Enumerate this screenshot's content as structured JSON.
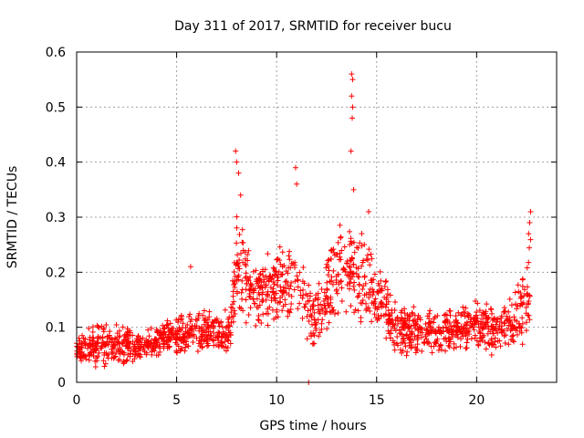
{
  "chart_data": {
    "type": "scatter",
    "title": "Day 311 of 2017, SRMTID for receiver bucu",
    "xlabel": "GPS time / hours",
    "ylabel": "SRMTID / TECUs",
    "xlim": [
      0,
      24
    ],
    "ylim": [
      0,
      0.6
    ],
    "xticks": [
      "0",
      "5",
      "10",
      "15",
      "20"
    ],
    "yticks": [
      "0",
      "0.1",
      "0.2",
      "0.3",
      "0.4",
      "0.5",
      "0.6"
    ],
    "xtick_values": [
      0,
      5,
      10,
      15,
      20
    ],
    "ytick_values": [
      0,
      0.1,
      0.2,
      0.3,
      0.4,
      0.5,
      0.6
    ],
    "grid": true,
    "marker": "+",
    "color": "#ff0000",
    "envelope": [
      {
        "x": 0.0,
        "lo": 0.03,
        "hi": 0.09
      },
      {
        "x": 1.0,
        "lo": 0.02,
        "hi": 0.11
      },
      {
        "x": 2.0,
        "lo": 0.03,
        "hi": 0.11
      },
      {
        "x": 3.0,
        "lo": 0.03,
        "hi": 0.1
      },
      {
        "x": 4.0,
        "lo": 0.04,
        "hi": 0.11
      },
      {
        "x": 5.0,
        "lo": 0.05,
        "hi": 0.12
      },
      {
        "x": 6.0,
        "lo": 0.05,
        "hi": 0.14
      },
      {
        "x": 7.0,
        "lo": 0.05,
        "hi": 0.13
      },
      {
        "x": 7.7,
        "lo": 0.05,
        "hi": 0.14
      },
      {
        "x": 8.0,
        "lo": 0.13,
        "hi": 0.32
      },
      {
        "x": 8.5,
        "lo": 0.1,
        "hi": 0.26
      },
      {
        "x": 9.0,
        "lo": 0.09,
        "hi": 0.23
      },
      {
        "x": 10.0,
        "lo": 0.1,
        "hi": 0.25
      },
      {
        "x": 11.0,
        "lo": 0.1,
        "hi": 0.26
      },
      {
        "x": 11.5,
        "lo": 0.07,
        "hi": 0.2
      },
      {
        "x": 12.0,
        "lo": 0.06,
        "hi": 0.17
      },
      {
        "x": 13.0,
        "lo": 0.12,
        "hi": 0.3
      },
      {
        "x": 14.0,
        "lo": 0.1,
        "hi": 0.3
      },
      {
        "x": 15.0,
        "lo": 0.08,
        "hi": 0.22
      },
      {
        "x": 16.0,
        "lo": 0.05,
        "hi": 0.15
      },
      {
        "x": 17.0,
        "lo": 0.04,
        "hi": 0.14
      },
      {
        "x": 18.0,
        "lo": 0.05,
        "hi": 0.13
      },
      {
        "x": 19.0,
        "lo": 0.05,
        "hi": 0.14
      },
      {
        "x": 20.0,
        "lo": 0.06,
        "hi": 0.16
      },
      {
        "x": 21.0,
        "lo": 0.04,
        "hi": 0.14
      },
      {
        "x": 22.0,
        "lo": 0.04,
        "hi": 0.18
      },
      {
        "x": 22.5,
        "lo": 0.06,
        "hi": 0.24
      },
      {
        "x": 22.7,
        "lo": 0.08,
        "hi": 0.3
      }
    ],
    "peaks": [
      {
        "x": 7.95,
        "y": 0.42
      },
      {
        "x": 8.0,
        "y": 0.4
      },
      {
        "x": 8.1,
        "y": 0.38
      },
      {
        "x": 8.2,
        "y": 0.34
      },
      {
        "x": 5.7,
        "y": 0.21
      },
      {
        "x": 10.95,
        "y": 0.39
      },
      {
        "x": 11.0,
        "y": 0.36
      },
      {
        "x": 13.75,
        "y": 0.56
      },
      {
        "x": 13.8,
        "y": 0.55
      },
      {
        "x": 13.75,
        "y": 0.52
      },
      {
        "x": 13.8,
        "y": 0.5
      },
      {
        "x": 13.78,
        "y": 0.48
      },
      {
        "x": 13.72,
        "y": 0.42
      },
      {
        "x": 13.85,
        "y": 0.35
      },
      {
        "x": 14.6,
        "y": 0.31
      },
      {
        "x": 22.7,
        "y": 0.31
      },
      {
        "x": 22.65,
        "y": 0.29
      },
      {
        "x": 22.6,
        "y": 0.27
      },
      {
        "x": 11.6,
        "y": 0.0
      }
    ]
  }
}
